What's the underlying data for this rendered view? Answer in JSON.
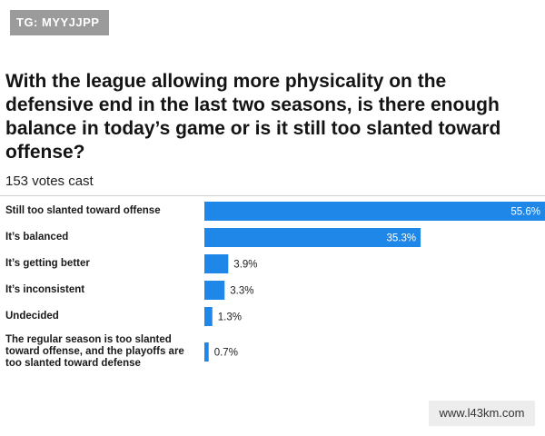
{
  "watermarks": {
    "top_left": "TG: MYYJJPP",
    "bottom_right": "www.l43km.com"
  },
  "colors": {
    "bar": "#1f87e8",
    "label_inside": "#ffffff",
    "label_outside": "#222222"
  },
  "chart_data": {
    "type": "bar",
    "orientation": "horizontal",
    "title": "With the league allowing more physicality on the defensive end in the last two seasons, is there enough balance in today’s game or is it still too slanted toward offense?",
    "subtitle": "153 votes cast",
    "categories": [
      "Still too slanted toward offense",
      "It’s balanced",
      "It’s getting better",
      "It’s inconsistent",
      "Undecided",
      "The regular season is too slanted toward offense, and the playoffs are too slanted toward defense"
    ],
    "values": [
      55.6,
      35.3,
      3.9,
      3.3,
      1.3,
      0.7
    ],
    "value_labels": [
      "55.6%",
      "35.3%",
      "3.9%",
      "3.3%",
      "1.3%",
      "0.7%"
    ],
    "unit": "%",
    "xlim": [
      0,
      55.6
    ],
    "grid": false,
    "legend": "none"
  }
}
